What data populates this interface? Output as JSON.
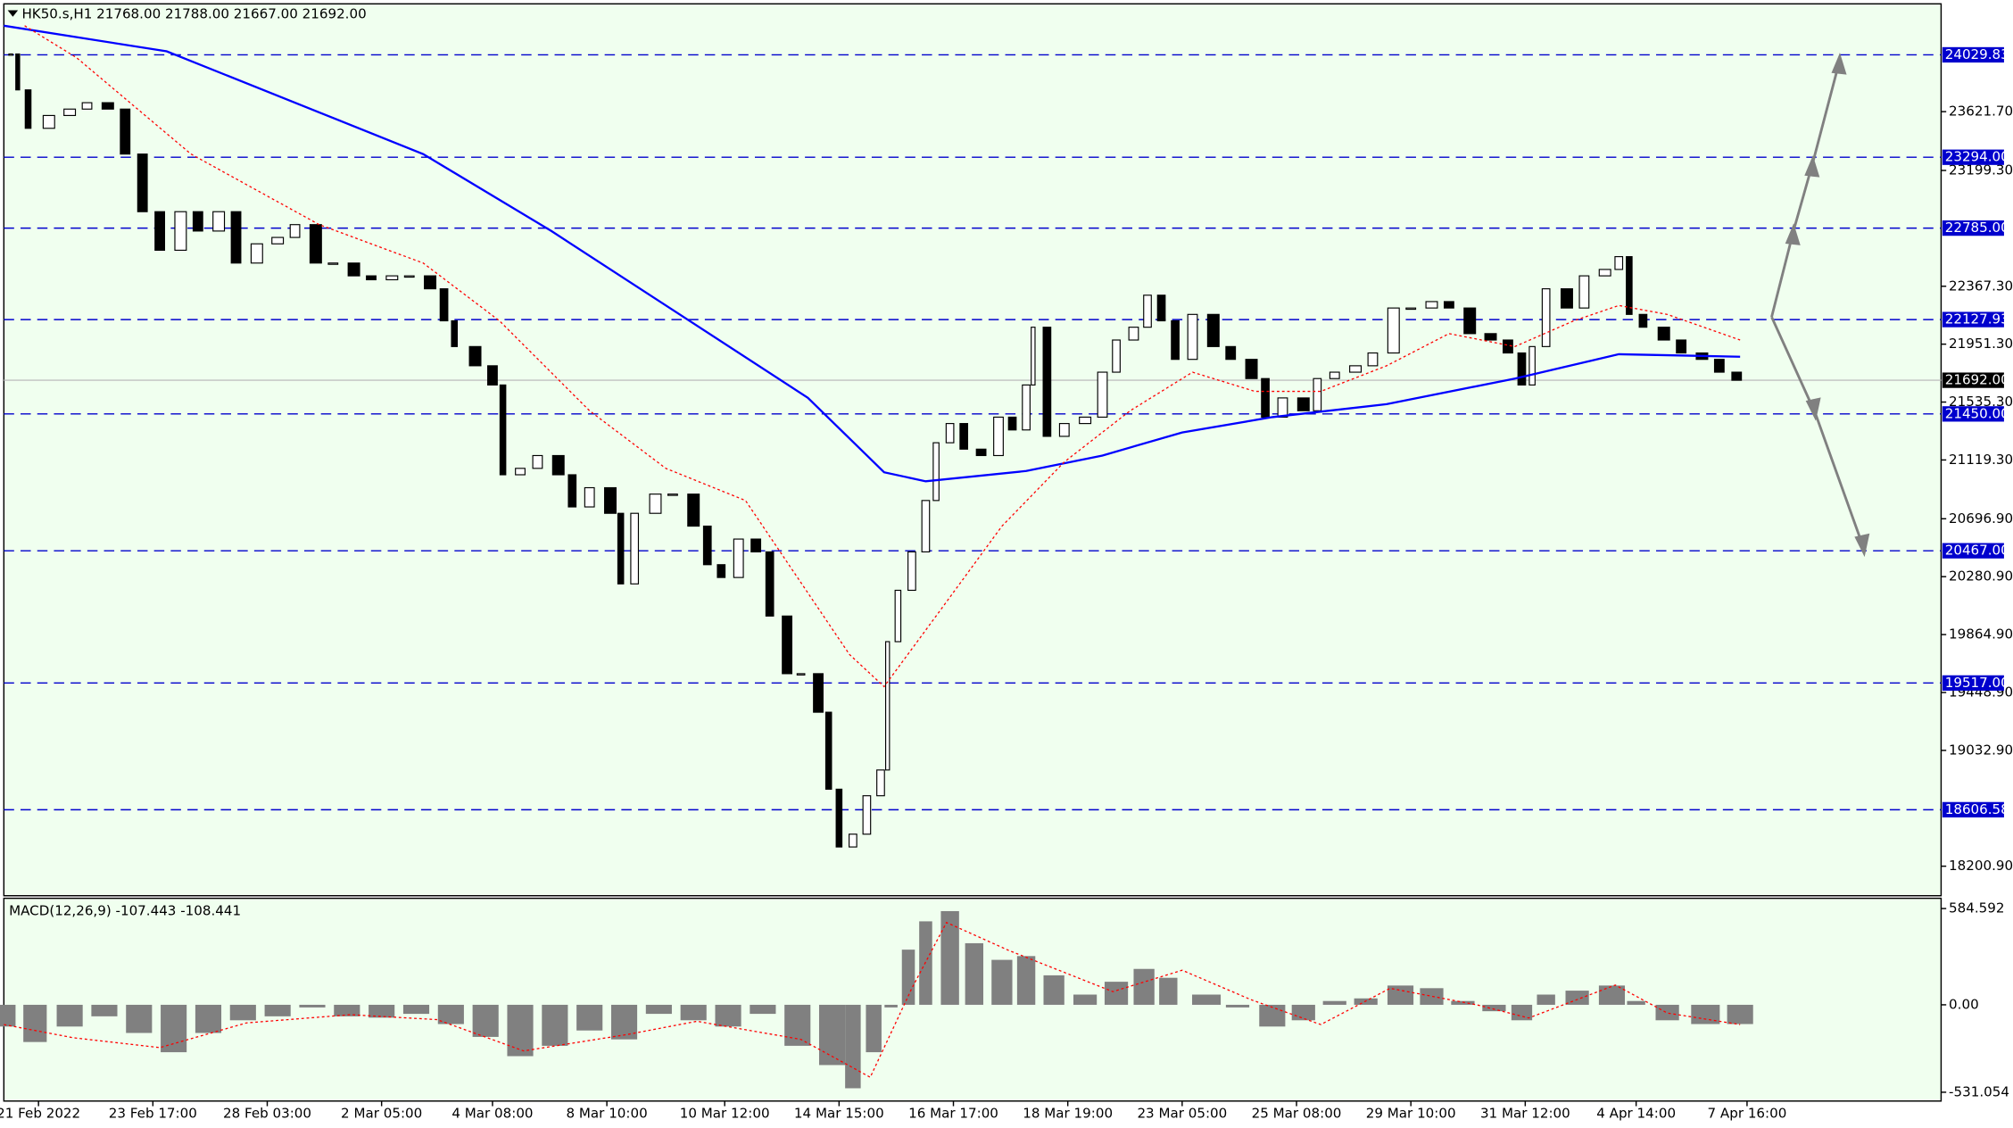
{
  "chart_data": [
    {
      "type": "candlestick",
      "title": "HK50.s,H1  21768.00 21788.00 21667.00 21692.00",
      "xlim": [
        0,
        559
      ],
      "ylim": [
        17988.7,
        24396.1
      ],
      "yticks": [
        {
          "value": 23621.7,
          "label": "23621.70"
        },
        {
          "value": 23199.3,
          "label": "23199.30"
        },
        {
          "value": 22367.3,
          "label": "22367.30"
        },
        {
          "value": 21951.3,
          "label": "21951.30"
        },
        {
          "value": 21535.3,
          "label": "21535.30"
        },
        {
          "value": 21119.3,
          "label": "21119.30"
        },
        {
          "value": 20696.9,
          "label": "20696.90"
        },
        {
          "value": 20280.9,
          "label": "20280.90"
        },
        {
          "value": 19864.9,
          "label": "19864.90"
        },
        {
          "value": 19448.9,
          "label": "19448.90"
        },
        {
          "value": 19032.9,
          "label": "19032.90"
        },
        {
          "value": 18200.9,
          "label": "18200.90"
        }
      ],
      "levels": [
        {
          "value": 24029.83,
          "label": "24029.83"
        },
        {
          "value": 23294,
          "label": "23294.00"
        },
        {
          "value": 22785,
          "label": "22785.00"
        },
        {
          "value": 22127.93,
          "label": "22127.93"
        },
        {
          "value": 21450,
          "label": "21450.00"
        },
        {
          "value": 20467,
          "label": "20467.00"
        },
        {
          "value": 19517,
          "label": "19517.00"
        },
        {
          "value": 18606.58,
          "label": "18606.58"
        }
      ],
      "level_color": "#0000cd",
      "last_price": {
        "value": 21692,
        "label": "21692.00"
      },
      "series": [
        {
          "style": "candle",
          "color": "#000000",
          "x": [
            2,
            4,
            7,
            13,
            19,
            24,
            30,
            35,
            40,
            45,
            51,
            56,
            62,
            67,
            73,
            79,
            84,
            90,
            95,
            101,
            106,
            112,
            117,
            123,
            127,
            130,
            136,
            141,
            144,
            149,
            154,
            160,
            164,
            169,
            175,
            178,
            182,
            188,
            193,
            199,
            203,
            207,
            212,
            217,
            221,
            226,
            230,
            235,
            238,
            241,
            245,
            249,
            253,
            255,
            258,
            262,
            266,
            269,
            273,
            277,
            282,
            287,
            291,
            295,
            297,
            301,
            306,
            312,
            317,
            321,
            326,
            330,
            334,
            338,
            343,
            349,
            354,
            360,
            364,
            369,
            375,
            379,
            384,
            390,
            395,
            401,
            406,
            412,
            417,
            423,
            429,
            434,
            438,
            441,
            445,
            451,
            456,
            462,
            466,
            469,
            473,
            479,
            484,
            490,
            495,
            500
          ],
          "values": [
            24036,
            23778,
            23502,
            23594,
            23640,
            23686,
            23640,
            23317,
            22903,
            22626,
            22903,
            22764,
            22903,
            22534,
            22672,
            22718,
            22810,
            22534,
            22534,
            22442,
            22414,
            22442,
            22442,
            22349,
            22119,
            21934,
            21796,
            21658,
            21013,
            21059,
            21151,
            21013,
            20782,
            20920,
            20736,
            20229,
            20736,
            20874,
            20874,
            20644,
            20367,
            20275,
            20551,
            20459,
            19998,
            19584,
            19584,
            19307,
            18754,
            18339,
            18431,
            18707,
            18892,
            19814,
            20183,
            20459,
            20828,
            21243,
            21381,
            21197,
            21151,
            21427,
            21335,
            21658,
            22073,
            21289,
            21381,
            21427,
            21750,
            21981,
            22073,
            22303,
            22119,
            21842,
            22165,
            21934,
            21842,
            21704,
            21427,
            21565,
            21473,
            21704,
            21750,
            21796,
            21888,
            22211,
            22211,
            22257,
            22211,
            22027,
            21981,
            21888,
            21658,
            21934,
            22349,
            22211,
            22442,
            22488,
            22580,
            22165,
            22073,
            21981,
            21888,
            21842,
            21750,
            21692
          ]
        },
        {
          "style": "line",
          "color": "#0000ff",
          "x": [
            0,
            47,
            121,
            158,
            195,
            232,
            254,
            266,
            295,
            317,
            340,
            366,
            399,
            436,
            466,
            501
          ],
          "values": [
            24239,
            24055,
            23317,
            22764,
            22165,
            21566,
            21031,
            20966,
            21040,
            21151,
            21317,
            21427,
            21520,
            21704,
            21879,
            21861
          ]
        },
        {
          "style": "dotted",
          "color": "#ff0000",
          "x": [
            6,
            21,
            54,
            91,
            121,
            143,
            169,
            191,
            214,
            229,
            244,
            254,
            269,
            288,
            306,
            325,
            343,
            361,
            380,
            399,
            417,
            436,
            453,
            466,
            480,
            501
          ],
          "values": [
            24239,
            24009,
            23317,
            22810,
            22534,
            22119,
            21473,
            21059,
            20828,
            20275,
            19722,
            19491,
            19998,
            20644,
            21105,
            21473,
            21750,
            21612,
            21612,
            21796,
            22027,
            21934,
            22119,
            22229,
            22165,
            21981
          ]
        }
      ]
    },
    {
      "type": "bar",
      "title": "MACD(12,26,9) -107.443 -108.441",
      "xlim": [
        0,
        559
      ],
      "ylim": [
        -584.6,
        646.9
      ],
      "yticks": [
        {
          "value": 584.592,
          "label": "584.592"
        },
        {
          "value": 0,
          "label": "0.00"
        },
        {
          "value": -531.054,
          "label": "-531.054"
        }
      ],
      "xticks": [
        {
          "value": 10,
          "label": "21 Feb 2022"
        },
        {
          "value": 43,
          "label": "23 Feb 17:00"
        },
        {
          "value": 76,
          "label": "28 Feb 03:00"
        },
        {
          "value": 109,
          "label": "2 Mar 05:00"
        },
        {
          "value": 141,
          "label": "4 Mar 08:00"
        },
        {
          "value": 174,
          "label": "8 Mar 10:00"
        },
        {
          "value": 208,
          "label": "10 Mar 12:00"
        },
        {
          "value": 241,
          "label": "14 Mar 15:00"
        },
        {
          "value": 274,
          "label": "16 Mar 17:00"
        },
        {
          "value": 307,
          "label": "18 Mar 19:00"
        },
        {
          "value": 340,
          "label": "23 Mar 05:00"
        },
        {
          "value": 373,
          "label": "25 Mar 08:00"
        },
        {
          "value": 406,
          "label": "29 Mar 10:00"
        },
        {
          "value": 439,
          "label": "31 Mar 12:00"
        },
        {
          "value": 471,
          "label": "4 Apr 14:00"
        },
        {
          "value": 503,
          "label": "7 Apr 16:00"
        }
      ],
      "series": [
        {
          "style": "histogram",
          "color": "#808080",
          "x": [
            0,
            9,
            19,
            29,
            39,
            49,
            59,
            69,
            79,
            89,
            99,
            109,
            119,
            129,
            139,
            149,
            159,
            169,
            179,
            189,
            199,
            209,
            219,
            229,
            239,
            245,
            251,
            256,
            261,
            266,
            273,
            280,
            288,
            295,
            303,
            312,
            321,
            329,
            336,
            347,
            356,
            366,
            375,
            384,
            393,
            403,
            412,
            421,
            430,
            438,
            445,
            454,
            464,
            471,
            480,
            491,
            501
          ],
          "values": [
            -132,
            -226,
            -132,
            -70,
            -171,
            -288,
            -171,
            -94,
            -70,
            -16,
            -70,
            -78,
            -55,
            -117,
            -195,
            -312,
            -249,
            -156,
            -210,
            -55,
            -94,
            -132,
            -55,
            -249,
            -366,
            -507,
            -288,
            -16,
            335,
            507,
            569,
            374,
            273,
            296,
            179,
            62,
            140,
            218,
            164,
            62,
            -16,
            -132,
            -94,
            23,
            39,
            117,
            101,
            23,
            -39,
            -94,
            62,
            86,
            117,
            23,
            -94,
            -117,
            -117
          ]
        },
        {
          "style": "dotted",
          "color": "#ff0000",
          "x": [
            0,
            20,
            45,
            70,
            100,
            125,
            150,
            180,
            200,
            230,
            250,
            262,
            272,
            290,
            320,
            340,
            360,
            380,
            400,
            425,
            440,
            465,
            480,
            501
          ],
          "values": [
            -120,
            -200,
            -260,
            -110,
            -60,
            -90,
            -280,
            -180,
            -100,
            -210,
            -440,
            100,
            500,
            330,
            80,
            210,
            30,
            -120,
            100,
            0,
            -80,
            120,
            -50,
            -120
          ]
        }
      ]
    }
  ]
}
